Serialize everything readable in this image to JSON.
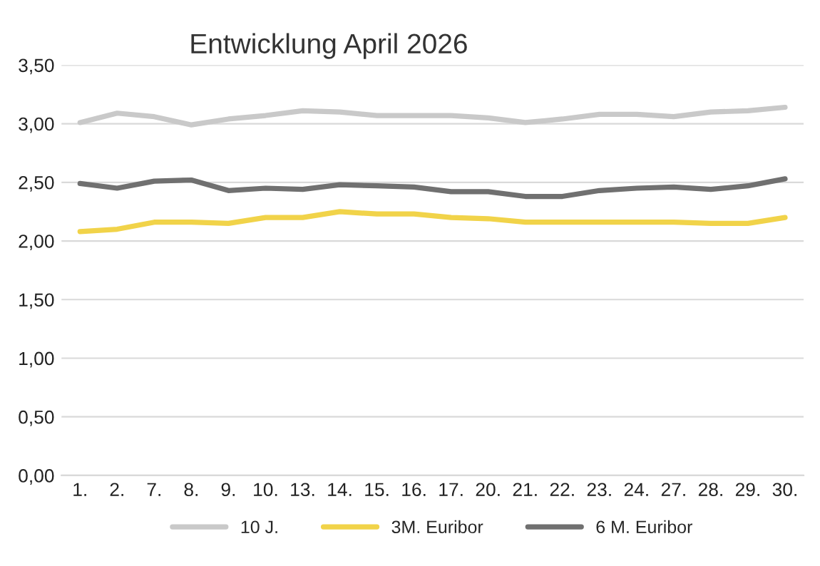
{
  "chart_data": {
    "type": "line",
    "title": "Entwicklung April 2026",
    "categories": [
      "1.",
      "2.",
      "7.",
      "8.",
      "9.",
      "10.",
      "13.",
      "14.",
      "15.",
      "16.",
      "17.",
      "20.",
      "21.",
      "22.",
      "23.",
      "24.",
      "27.",
      "28.",
      "29.",
      "30."
    ],
    "series": [
      {
        "name": "10 J.",
        "color": "#c9c9c9",
        "values": [
          3.01,
          3.09,
          3.06,
          2.99,
          3.04,
          3.07,
          3.11,
          3.1,
          3.07,
          3.07,
          3.07,
          3.05,
          3.01,
          3.04,
          3.08,
          3.08,
          3.06,
          3.1,
          3.11,
          3.14
        ]
      },
      {
        "name": "3M. Euribor",
        "color": "#f1d349",
        "values": [
          2.08,
          2.1,
          2.16,
          2.16,
          2.15,
          2.2,
          2.2,
          2.25,
          2.23,
          2.23,
          2.2,
          2.19,
          2.16,
          2.16,
          2.16,
          2.16,
          2.16,
          2.15,
          2.15,
          2.2
        ]
      },
      {
        "name": "6 M. Euribor",
        "color": "#707070",
        "values": [
          2.49,
          2.45,
          2.51,
          2.52,
          2.43,
          2.45,
          2.44,
          2.48,
          2.47,
          2.46,
          2.42,
          2.42,
          2.38,
          2.38,
          2.43,
          2.45,
          2.46,
          2.44,
          2.47,
          2.53
        ]
      }
    ],
    "ylim": [
      0,
      3.5
    ],
    "yticks": [
      {
        "value": 0,
        "label": "0,00"
      },
      {
        "value": 0.5,
        "label": "0,50"
      },
      {
        "value": 1,
        "label": "1,00"
      },
      {
        "value": 1.5,
        "label": "1,50"
      },
      {
        "value": 2,
        "label": "2,00"
      },
      {
        "value": 2.5,
        "label": "2,50"
      },
      {
        "value": 3,
        "label": "3,00"
      },
      {
        "value": 3.5,
        "label": "3,50"
      }
    ],
    "grid": "y",
    "legend": "bottom",
    "marker": "none",
    "line_style": "solid"
  }
}
